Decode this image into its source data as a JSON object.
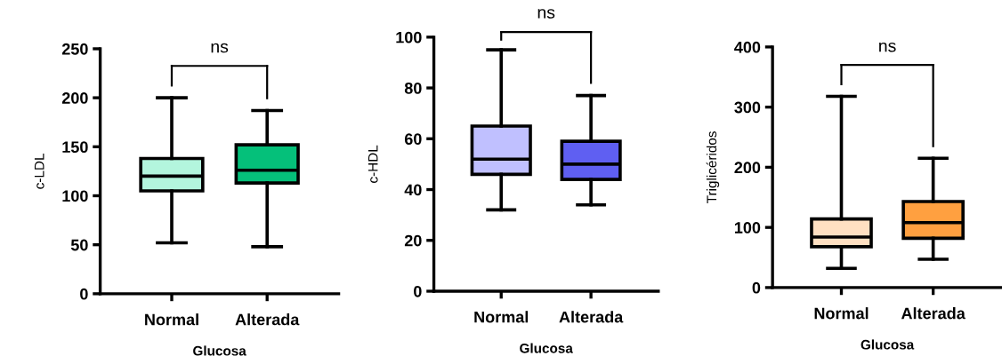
{
  "chart_data": [
    {
      "type": "box",
      "categories": [
        "Normal",
        "Alterada"
      ],
      "xlabel": "Glucosa",
      "ylabel": "c-LDL",
      "ylim": [
        0,
        250
      ],
      "yticks": [
        0,
        50,
        100,
        150,
        200,
        250
      ],
      "colors": [
        "#b3f5dd",
        "#05c07a"
      ],
      "annotations": [
        "ns"
      ],
      "grid": false,
      "boxes": [
        {
          "low": 52,
          "q1": 105,
          "median": 120,
          "q3": 138,
          "high": 200
        },
        {
          "low": 48,
          "q1": 113,
          "median": 126,
          "q3": 152,
          "high": 187
        }
      ]
    },
    {
      "type": "box",
      "categories": [
        "Normal",
        "Alterada"
      ],
      "xlabel": "Glucosa",
      "ylabel": "c-HDL",
      "ylim": [
        0,
        100
      ],
      "yticks": [
        0,
        20,
        40,
        60,
        80,
        100
      ],
      "colors": [
        "#c0c0ff",
        "#5f5ff2"
      ],
      "annotations": [
        "ns"
      ],
      "grid": false,
      "boxes": [
        {
          "low": 32,
          "q1": 46,
          "median": 52,
          "q3": 65,
          "high": 95
        },
        {
          "low": 34,
          "q1": 44,
          "median": 50,
          "q3": 59,
          "high": 77
        }
      ]
    },
    {
      "type": "box",
      "categories": [
        "Normal",
        "Alterada"
      ],
      "xlabel": "Glucosa",
      "ylabel": "Triglicéridos",
      "ylim": [
        0,
        400
      ],
      "yticks": [
        0,
        100,
        200,
        300,
        400
      ],
      "colors": [
        "#ffe0c2",
        "#ffa040"
      ],
      "annotations": [
        "ns"
      ],
      "grid": false,
      "boxes": [
        {
          "low": 32,
          "q1": 68,
          "median": 84,
          "q3": 114,
          "high": 318
        },
        {
          "low": 47,
          "q1": 82,
          "median": 108,
          "q3": 143,
          "high": 215
        }
      ]
    }
  ]
}
